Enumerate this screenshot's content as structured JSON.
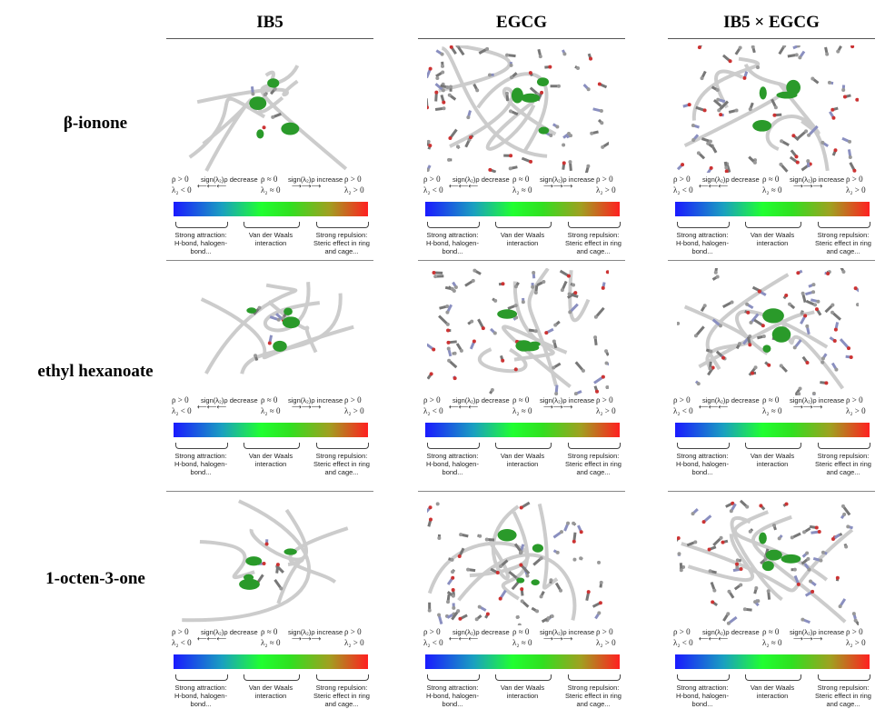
{
  "columns": [
    "IB5",
    "EGCG",
    "IB5 × EGCG"
  ],
  "rows": [
    "β-ionone",
    "ethyl hexanoate",
    "1-octen-3-one"
  ],
  "legend": {
    "left_top": "ρ > 0",
    "left_bottom": "λ₂ < 0",
    "decrease": "sign(λ₂)ρ decrease",
    "mid_top": "ρ ≈ 0",
    "mid_bottom": "λ₂ ≈ 0",
    "increase": "sign(λ₂)ρ increase",
    "right_top": "ρ > 0",
    "right_bottom": "λ₂ > 0",
    "cap_left": "Strong attraction:\nH-bond, halogen-bond...",
    "cap_mid": "Van der Waals\ninteraction",
    "cap_right": "Strong repulsion:\nSteric effect in ring\nand cage...",
    "gradient_colors": [
      "#1a1aff",
      "#20ff30",
      "#ff2020"
    ]
  }
}
